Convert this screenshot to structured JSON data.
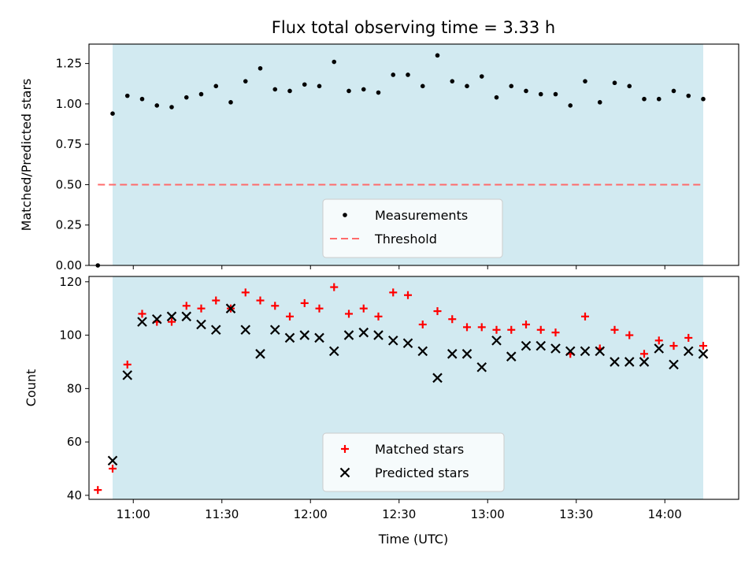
{
  "chart_data": {
    "title": "Flux total observing time = 3.33 h",
    "xlabel": "Time (UTC)",
    "x_ticks": [
      "11:00",
      "11:30",
      "12:00",
      "12:30",
      "13:00",
      "13:30",
      "14:00"
    ],
    "shaded_region": {
      "start": "10:53",
      "end": "14:13",
      "color": "#add8e6"
    },
    "times": [
      "10:48",
      "10:53",
      "10:58",
      "11:03",
      "11:08",
      "11:13",
      "11:18",
      "11:23",
      "11:28",
      "11:33",
      "11:38",
      "11:43",
      "11:48",
      "11:53",
      "11:58",
      "12:03",
      "12:08",
      "12:13",
      "12:18",
      "12:23",
      "12:28",
      "12:33",
      "12:38",
      "12:43",
      "12:48",
      "12:53",
      "12:58",
      "13:03",
      "13:08",
      "13:13",
      "13:18",
      "13:23",
      "13:28",
      "13:33",
      "13:38",
      "13:43",
      "13:48",
      "13:53",
      "13:58",
      "14:03",
      "14:08",
      "14:13"
    ],
    "panels": [
      {
        "type": "scatter",
        "ylabel": "Matched/Predicted stars",
        "ylim": [
          0,
          1.37
        ],
        "y_ticks": [
          "0.00",
          "0.25",
          "0.50",
          "0.75",
          "1.00",
          "1.25"
        ],
        "series": [
          {
            "name": "Measurements",
            "color": "#000000",
            "marker": "dot",
            "values": [
              0.0,
              0.94,
              1.05,
              1.03,
              0.99,
              0.98,
              1.04,
              1.06,
              1.11,
              1.01,
              1.14,
              1.22,
              1.09,
              1.08,
              1.12,
              1.11,
              1.26,
              1.08,
              1.09,
              1.07,
              1.18,
              1.18,
              1.11,
              1.3,
              1.14,
              1.11,
              1.17,
              1.04,
              1.11,
              1.08,
              1.06,
              1.06,
              0.99,
              1.14,
              1.01,
              1.13,
              1.11,
              1.03,
              1.03,
              1.08,
              1.05,
              1.03
            ]
          }
        ],
        "threshold": {
          "name": "Threshold",
          "value": 0.5,
          "color": "#ff6b6b"
        },
        "legend": "lower-center"
      },
      {
        "type": "scatter",
        "ylabel": "Count",
        "ylim": [
          38.5,
          122
        ],
        "y_ticks": [
          "40",
          "60",
          "80",
          "100",
          "120"
        ],
        "series": [
          {
            "name": "Matched stars",
            "color": "#ff0000",
            "marker": "plus",
            "values": [
              42,
              50,
              89,
              108,
              105,
              105,
              111,
              110,
              113,
              110,
              116,
              113,
              111,
              107,
              112,
              110,
              118,
              108,
              110,
              107,
              116,
              115,
              104,
              109,
              106,
              103,
              103,
              102,
              102,
              104,
              102,
              101,
              93,
              107,
              95,
              102,
              100,
              93,
              98,
              96,
              99,
              96
            ]
          },
          {
            "name": "Predicted stars",
            "color": "#000000",
            "marker": "x",
            "values": [
              null,
              53,
              85,
              105,
              106,
              107,
              107,
              104,
              102,
              110,
              102,
              93,
              102,
              99,
              100,
              99,
              94,
              100,
              101,
              100,
              98,
              97,
              94,
              84,
              93,
              93,
              88,
              98,
              92,
              96,
              96,
              95,
              94,
              94,
              94,
              90,
              90,
              90,
              95,
              89,
              94,
              93
            ]
          }
        ],
        "legend": "lower-center"
      }
    ]
  }
}
